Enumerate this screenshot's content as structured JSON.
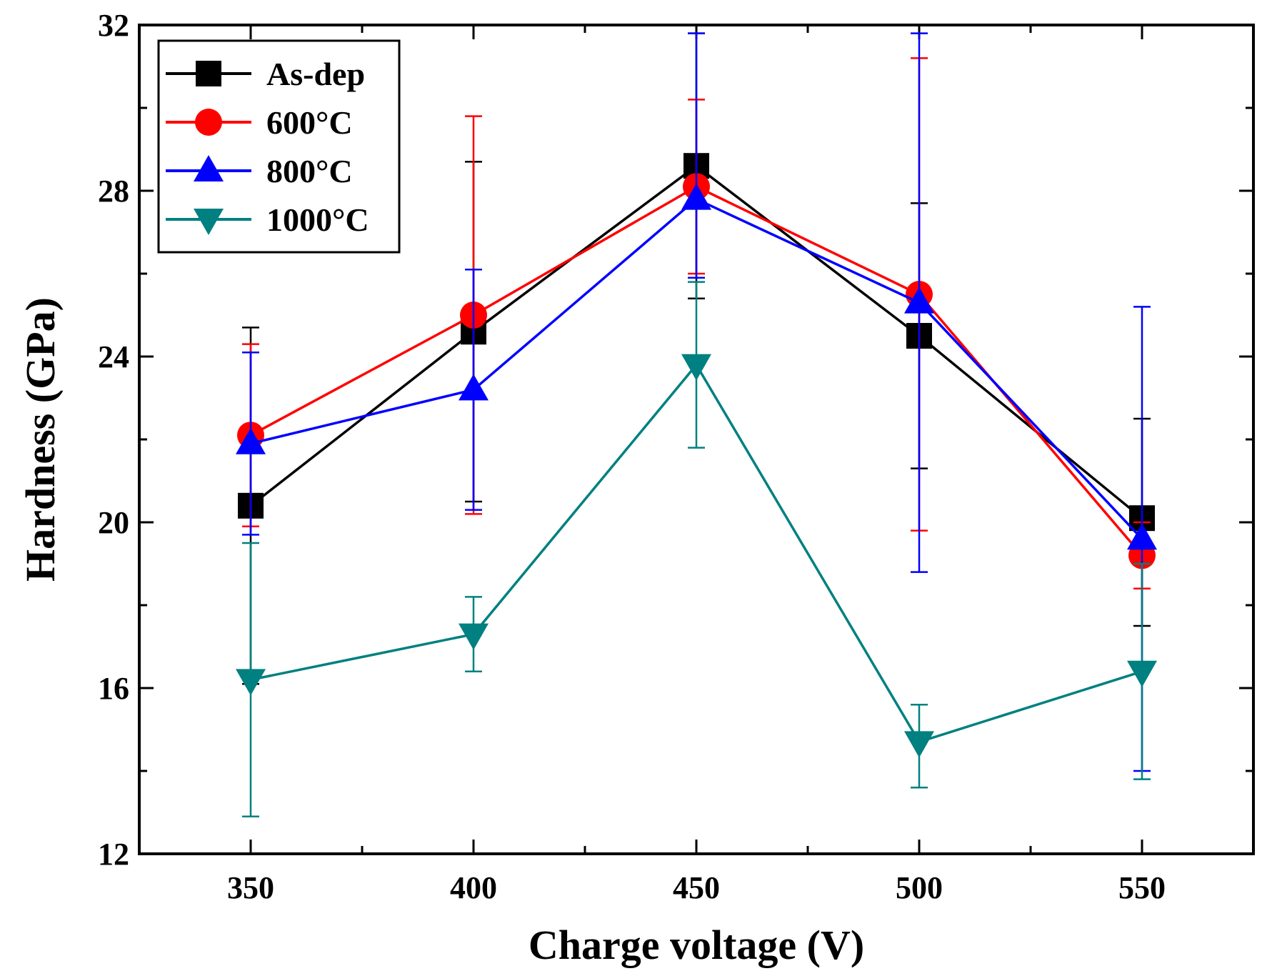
{
  "chart_data": {
    "type": "line",
    "title": "",
    "xlabel": "Charge voltage (V)",
    "ylabel": "Hardness (GPa)",
    "xlim": [
      325,
      575
    ],
    "ylim": [
      12,
      32
    ],
    "x": [
      350,
      400,
      450,
      500,
      550
    ],
    "x_ticks": [
      "350",
      "400",
      "450",
      "500",
      "550"
    ],
    "y_ticks": [
      "12",
      "16",
      "20",
      "24",
      "28",
      "32"
    ],
    "x_tick_values": [
      350,
      400,
      450,
      500,
      550
    ],
    "y_tick_values": [
      12,
      16,
      20,
      24,
      28,
      32
    ],
    "legend_position": "top-left",
    "grid": false,
    "series": [
      {
        "name": "As-dep",
        "color": "#000000",
        "marker": "square",
        "values": [
          20.4,
          24.6,
          28.6,
          24.5,
          20.1
        ],
        "err_low": [
          16.1,
          20.5,
          25.4,
          21.3,
          17.5
        ],
        "err_high": [
          24.7,
          28.7,
          31.8,
          27.7,
          22.5
        ]
      },
      {
        "name": "600°C",
        "color": "#ff0000",
        "marker": "circle",
        "values": [
          22.1,
          25.0,
          28.1,
          25.5,
          19.2
        ],
        "err_low": [
          19.9,
          20.2,
          26.0,
          19.8,
          18.4
        ],
        "err_high": [
          24.3,
          29.8,
          30.2,
          31.2,
          20.0
        ]
      },
      {
        "name": "800°C",
        "color": "#0000ff",
        "marker": "triangle-up",
        "values": [
          21.9,
          23.2,
          27.8,
          25.3,
          19.6
        ],
        "err_low": [
          19.7,
          20.3,
          25.9,
          18.8,
          14.0
        ],
        "err_high": [
          24.1,
          26.1,
          31.8,
          31.8,
          25.2
        ]
      },
      {
        "name": "1000°C",
        "color": "#008080",
        "marker": "triangle-down",
        "values": [
          16.2,
          17.3,
          23.8,
          14.7,
          16.4
        ],
        "err_low": [
          12.9,
          16.4,
          21.8,
          13.6,
          13.8
        ],
        "err_high": [
          19.5,
          18.2,
          25.8,
          15.6,
          19.0
        ]
      }
    ]
  }
}
